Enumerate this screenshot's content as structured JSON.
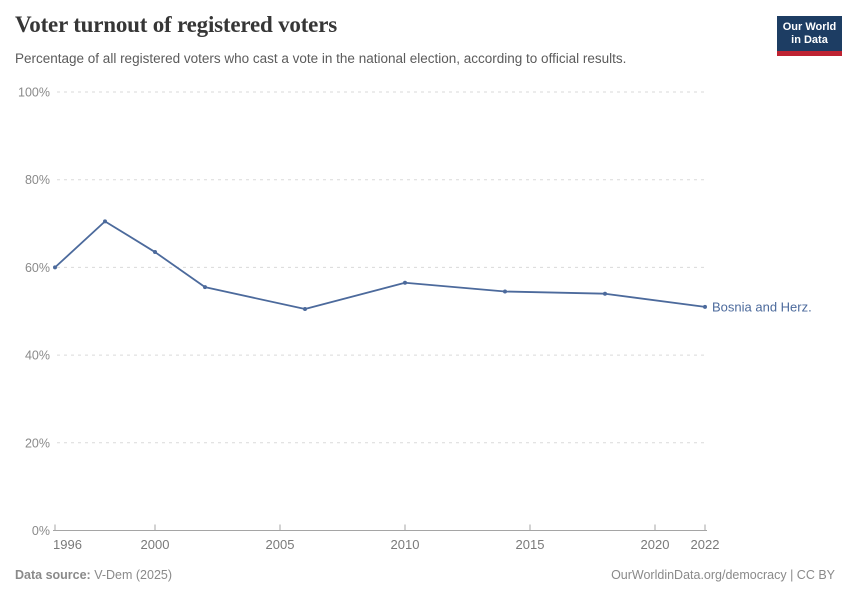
{
  "header": {
    "title": "Voter turnout of registered voters",
    "subtitle": "Percentage of all registered voters who cast a vote in the national election, according to official results."
  },
  "logo": {
    "line1": "Our World",
    "line2": "in Data"
  },
  "chart_data": {
    "type": "line",
    "title": "Voter turnout of registered voters",
    "x": [
      1996,
      1998,
      2000,
      2002,
      2006,
      2010,
      2014,
      2018,
      2022
    ],
    "series": [
      {
        "name": "Bosnia and Herz.",
        "color": "#4C6A9C",
        "values": [
          60,
          70.5,
          63.5,
          55.5,
          50.5,
          56.5,
          54.5,
          54,
          51
        ]
      }
    ],
    "xlim": [
      1996,
      2022
    ],
    "ylim": [
      0,
      100
    ],
    "xticks": [
      1996,
      2000,
      2005,
      2010,
      2015,
      2020,
      2022
    ],
    "yticks": [
      0,
      20,
      40,
      60,
      80,
      100
    ],
    "ytick_suffix": "%",
    "grid": "horizontal-dashed",
    "legend_position": "line-end"
  },
  "footer": {
    "source_label": "Data source:",
    "source_value": " V-Dem (2025)",
    "credit": "OurWorldinData.org/democracy | CC BY"
  },
  "colors": {
    "line": "#4C6A9C",
    "logo_bg": "#1D3D63",
    "logo_accent": "#BE2332",
    "grid": "#DADADA",
    "axis": "#A5A5A5",
    "y_tick_label": "#8a8a8a",
    "x_tick_label": "#7a7a7a"
  }
}
